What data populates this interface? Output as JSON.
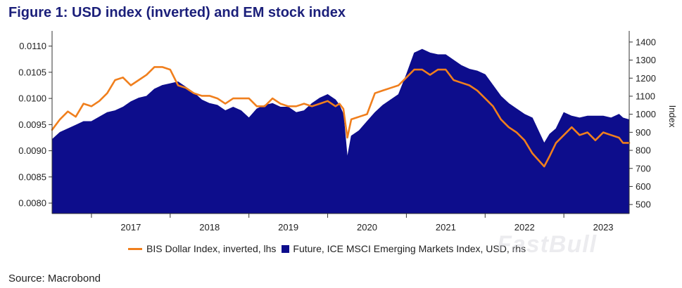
{
  "colors": {
    "usd_line": "#f07f1d",
    "em_area": "#0d0d8c",
    "title": "#1b1f7a"
  },
  "source": "Source: Macrobond",
  "watermark": "FastBull",
  "chart_data": {
    "type": "line",
    "title": "Figure 1: USD index (inverted) and EM stock index",
    "x_range": [
      2016.5,
      2023.83
    ],
    "x_tick_labels": [
      "2017",
      "2018",
      "2019",
      "2020",
      "2021",
      "2022",
      "2023"
    ],
    "y_left": {
      "range": [
        0.0078,
        0.01125
      ],
      "ticks": [
        "0.0080",
        "0.0085",
        "0.0090",
        "0.0095",
        "0.0100",
        "0.0105",
        "0.0110"
      ],
      "label": ""
    },
    "y_right": {
      "range": [
        450,
        1450
      ],
      "ticks": [
        "500",
        "600",
        "700",
        "800",
        "900",
        "1000",
        "1100",
        "1200",
        "1300",
        "1400"
      ],
      "label": "Index"
    },
    "series": [
      {
        "name": "BIS Dollar Index, inverted, lhs",
        "axis": "left",
        "style": "line",
        "x": [
          2016.5,
          2016.6,
          2016.7,
          2016.8,
          2016.9,
          2017.0,
          2017.1,
          2017.2,
          2017.3,
          2017.4,
          2017.5,
          2017.6,
          2017.7,
          2017.8,
          2017.9,
          2018.0,
          2018.1,
          2018.2,
          2018.3,
          2018.4,
          2018.5,
          2018.6,
          2018.7,
          2018.8,
          2018.9,
          2019.0,
          2019.1,
          2019.2,
          2019.3,
          2019.4,
          2019.5,
          2019.6,
          2019.7,
          2019.8,
          2019.9,
          2020.0,
          2020.1,
          2020.15,
          2020.2,
          2020.25,
          2020.3,
          2020.4,
          2020.5,
          2020.6,
          2020.7,
          2020.8,
          2020.9,
          2021.0,
          2021.1,
          2021.2,
          2021.3,
          2021.4,
          2021.5,
          2021.6,
          2021.7,
          2021.8,
          2021.9,
          2022.0,
          2022.1,
          2022.2,
          2022.3,
          2022.4,
          2022.5,
          2022.6,
          2022.75,
          2022.82,
          2022.9,
          2023.0,
          2023.1,
          2023.2,
          2023.3,
          2023.4,
          2023.5,
          2023.6,
          2023.7,
          2023.75,
          2023.83
        ],
        "values": [
          0.0094,
          0.0096,
          0.00975,
          0.00965,
          0.0099,
          0.00985,
          0.00995,
          0.0101,
          0.01035,
          0.0104,
          0.01025,
          0.01035,
          0.01045,
          0.0106,
          0.0106,
          0.01055,
          0.01025,
          0.0102,
          0.0101,
          0.01005,
          0.01005,
          0.01,
          0.0099,
          0.01,
          0.01,
          0.01,
          0.00985,
          0.00985,
          0.01,
          0.0099,
          0.00985,
          0.00985,
          0.0099,
          0.00985,
          0.0099,
          0.00995,
          0.00985,
          0.0099,
          0.0098,
          0.00925,
          0.0096,
          0.00965,
          0.0097,
          0.0101,
          0.01015,
          0.0102,
          0.01025,
          0.0104,
          0.01055,
          0.01055,
          0.01045,
          0.01055,
          0.01055,
          0.01035,
          0.0103,
          0.01025,
          0.01015,
          0.01,
          0.00985,
          0.0096,
          0.00945,
          0.00935,
          0.0092,
          0.00895,
          0.0087,
          0.0089,
          0.00915,
          0.0093,
          0.00945,
          0.0093,
          0.00935,
          0.0092,
          0.00935,
          0.0093,
          0.00925,
          0.00915,
          0.00915
        ]
      },
      {
        "name": "Future, ICE MSCI Emerging Markets Index, USD, rhs",
        "axis": "right",
        "style": "area",
        "x": [
          2016.5,
          2016.6,
          2016.7,
          2016.8,
          2016.9,
          2017.0,
          2017.1,
          2017.2,
          2017.3,
          2017.4,
          2017.5,
          2017.6,
          2017.7,
          2017.8,
          2017.9,
          2018.0,
          2018.1,
          2018.2,
          2018.3,
          2018.4,
          2018.5,
          2018.6,
          2018.7,
          2018.8,
          2018.9,
          2019.0,
          2019.1,
          2019.2,
          2019.3,
          2019.4,
          2019.5,
          2019.6,
          2019.7,
          2019.8,
          2019.9,
          2020.0,
          2020.1,
          2020.15,
          2020.2,
          2020.25,
          2020.3,
          2020.4,
          2020.5,
          2020.6,
          2020.7,
          2020.8,
          2020.9,
          2021.0,
          2021.05,
          2021.1,
          2021.2,
          2021.3,
          2021.4,
          2021.5,
          2021.6,
          2021.7,
          2021.8,
          2021.9,
          2022.0,
          2022.1,
          2022.2,
          2022.3,
          2022.4,
          2022.5,
          2022.6,
          2022.75,
          2022.82,
          2022.9,
          2023.0,
          2023.1,
          2023.2,
          2023.3,
          2023.4,
          2023.5,
          2023.6,
          2023.7,
          2023.75,
          2023.83
        ],
        "values": [
          860,
          900,
          920,
          940,
          960,
          960,
          985,
          1010,
          1020,
          1040,
          1070,
          1090,
          1100,
          1140,
          1160,
          1170,
          1180,
          1150,
          1120,
          1080,
          1060,
          1050,
          1020,
          1040,
          1020,
          980,
          1030,
          1050,
          1060,
          1040,
          1040,
          1010,
          1020,
          1060,
          1090,
          1110,
          1080,
          1050,
          1000,
          760,
          880,
          910,
          960,
          1010,
          1050,
          1080,
          1110,
          1220,
          1280,
          1340,
          1360,
          1340,
          1330,
          1330,
          1300,
          1270,
          1250,
          1240,
          1220,
          1160,
          1100,
          1060,
          1030,
          1000,
          980,
          840,
          890,
          920,
          1010,
          990,
          980,
          990,
          990,
          990,
          980,
          1000,
          980,
          970
        ]
      }
    ]
  }
}
